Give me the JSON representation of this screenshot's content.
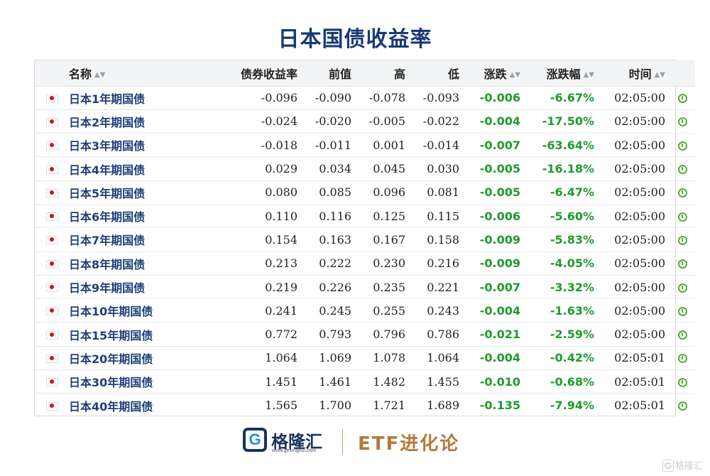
{
  "title": "日本国债收益率",
  "table": {
    "headers": {
      "name": "名称",
      "yield": "债券收益率",
      "prev": "前值",
      "high": "高",
      "low": "低",
      "change": "涨跌",
      "change_pct": "涨跌幅",
      "time": "时间"
    },
    "rows": [
      {
        "name": "日本1年期国债",
        "yield": "-0.096",
        "prev": "-0.090",
        "high": "-0.078",
        "low": "-0.093",
        "change": "-0.006",
        "change_pct": "-6.67%",
        "time": "02:05:00"
      },
      {
        "name": "日本2年期国债",
        "yield": "-0.024",
        "prev": "-0.020",
        "high": "-0.005",
        "low": "-0.022",
        "change": "-0.004",
        "change_pct": "-17.50%",
        "time": "02:05:00"
      },
      {
        "name": "日本3年期国债",
        "yield": "-0.018",
        "prev": "-0.011",
        "high": "0.001",
        "low": "-0.014",
        "change": "-0.007",
        "change_pct": "-63.64%",
        "time": "02:05:00"
      },
      {
        "name": "日本4年期国债",
        "yield": "0.029",
        "prev": "0.034",
        "high": "0.045",
        "low": "0.030",
        "change": "-0.005",
        "change_pct": "-16.18%",
        "time": "02:05:00"
      },
      {
        "name": "日本5年期国债",
        "yield": "0.080",
        "prev": "0.085",
        "high": "0.096",
        "low": "0.081",
        "change": "-0.005",
        "change_pct": "-6.47%",
        "time": "02:05:00"
      },
      {
        "name": "日本6年期国债",
        "yield": "0.110",
        "prev": "0.116",
        "high": "0.125",
        "low": "0.115",
        "change": "-0.006",
        "change_pct": "-5.60%",
        "time": "02:05:00"
      },
      {
        "name": "日本7年期国债",
        "yield": "0.154",
        "prev": "0.163",
        "high": "0.167",
        "low": "0.158",
        "change": "-0.009",
        "change_pct": "-5.83%",
        "time": "02:05:00"
      },
      {
        "name": "日本8年期国债",
        "yield": "0.213",
        "prev": "0.222",
        "high": "0.230",
        "low": "0.216",
        "change": "-0.009",
        "change_pct": "-4.05%",
        "time": "02:05:00"
      },
      {
        "name": "日本9年期国债",
        "yield": "0.219",
        "prev": "0.226",
        "high": "0.235",
        "low": "0.221",
        "change": "-0.007",
        "change_pct": "-3.32%",
        "time": "02:05:00"
      },
      {
        "name": "日本10年期国债",
        "yield": "0.241",
        "prev": "0.245",
        "high": "0.255",
        "low": "0.243",
        "change": "-0.004",
        "change_pct": "-1.63%",
        "time": "02:05:00"
      },
      {
        "name": "日本15年期国债",
        "yield": "0.772",
        "prev": "0.793",
        "high": "0.796",
        "low": "0.786",
        "change": "-0.021",
        "change_pct": "-2.59%",
        "time": "02:05:00"
      },
      {
        "name": "日本20年期国债",
        "yield": "1.064",
        "prev": "1.069",
        "high": "1.078",
        "low": "1.064",
        "change": "-0.004",
        "change_pct": "-0.42%",
        "time": "02:05:01"
      },
      {
        "name": "日本30年期国债",
        "yield": "1.451",
        "prev": "1.461",
        "high": "1.482",
        "low": "1.455",
        "change": "-0.010",
        "change_pct": "-0.68%",
        "time": "02:05:01"
      },
      {
        "name": "日本40年期国债",
        "yield": "1.565",
        "prev": "1.700",
        "high": "1.721",
        "low": "1.689",
        "change": "-0.135",
        "change_pct": "-7.94%",
        "time": "02:05:01"
      }
    ]
  },
  "footer": {
    "logo_letter": "G",
    "logo_name": "格隆汇",
    "logo_url": "www.gelonghui.com",
    "brand": "ETF进化论"
  },
  "watermark": {
    "box": "G",
    "text": "格隆汇"
  },
  "colors": {
    "title": "#173a73",
    "name": "#1f3f7a",
    "negative": "#1f9b2c",
    "brand": "#b37a3c"
  },
  "icons": {
    "flag": "japan-flag-icon",
    "sort": "sort-arrows-icon",
    "row_action": "clock-icon"
  }
}
